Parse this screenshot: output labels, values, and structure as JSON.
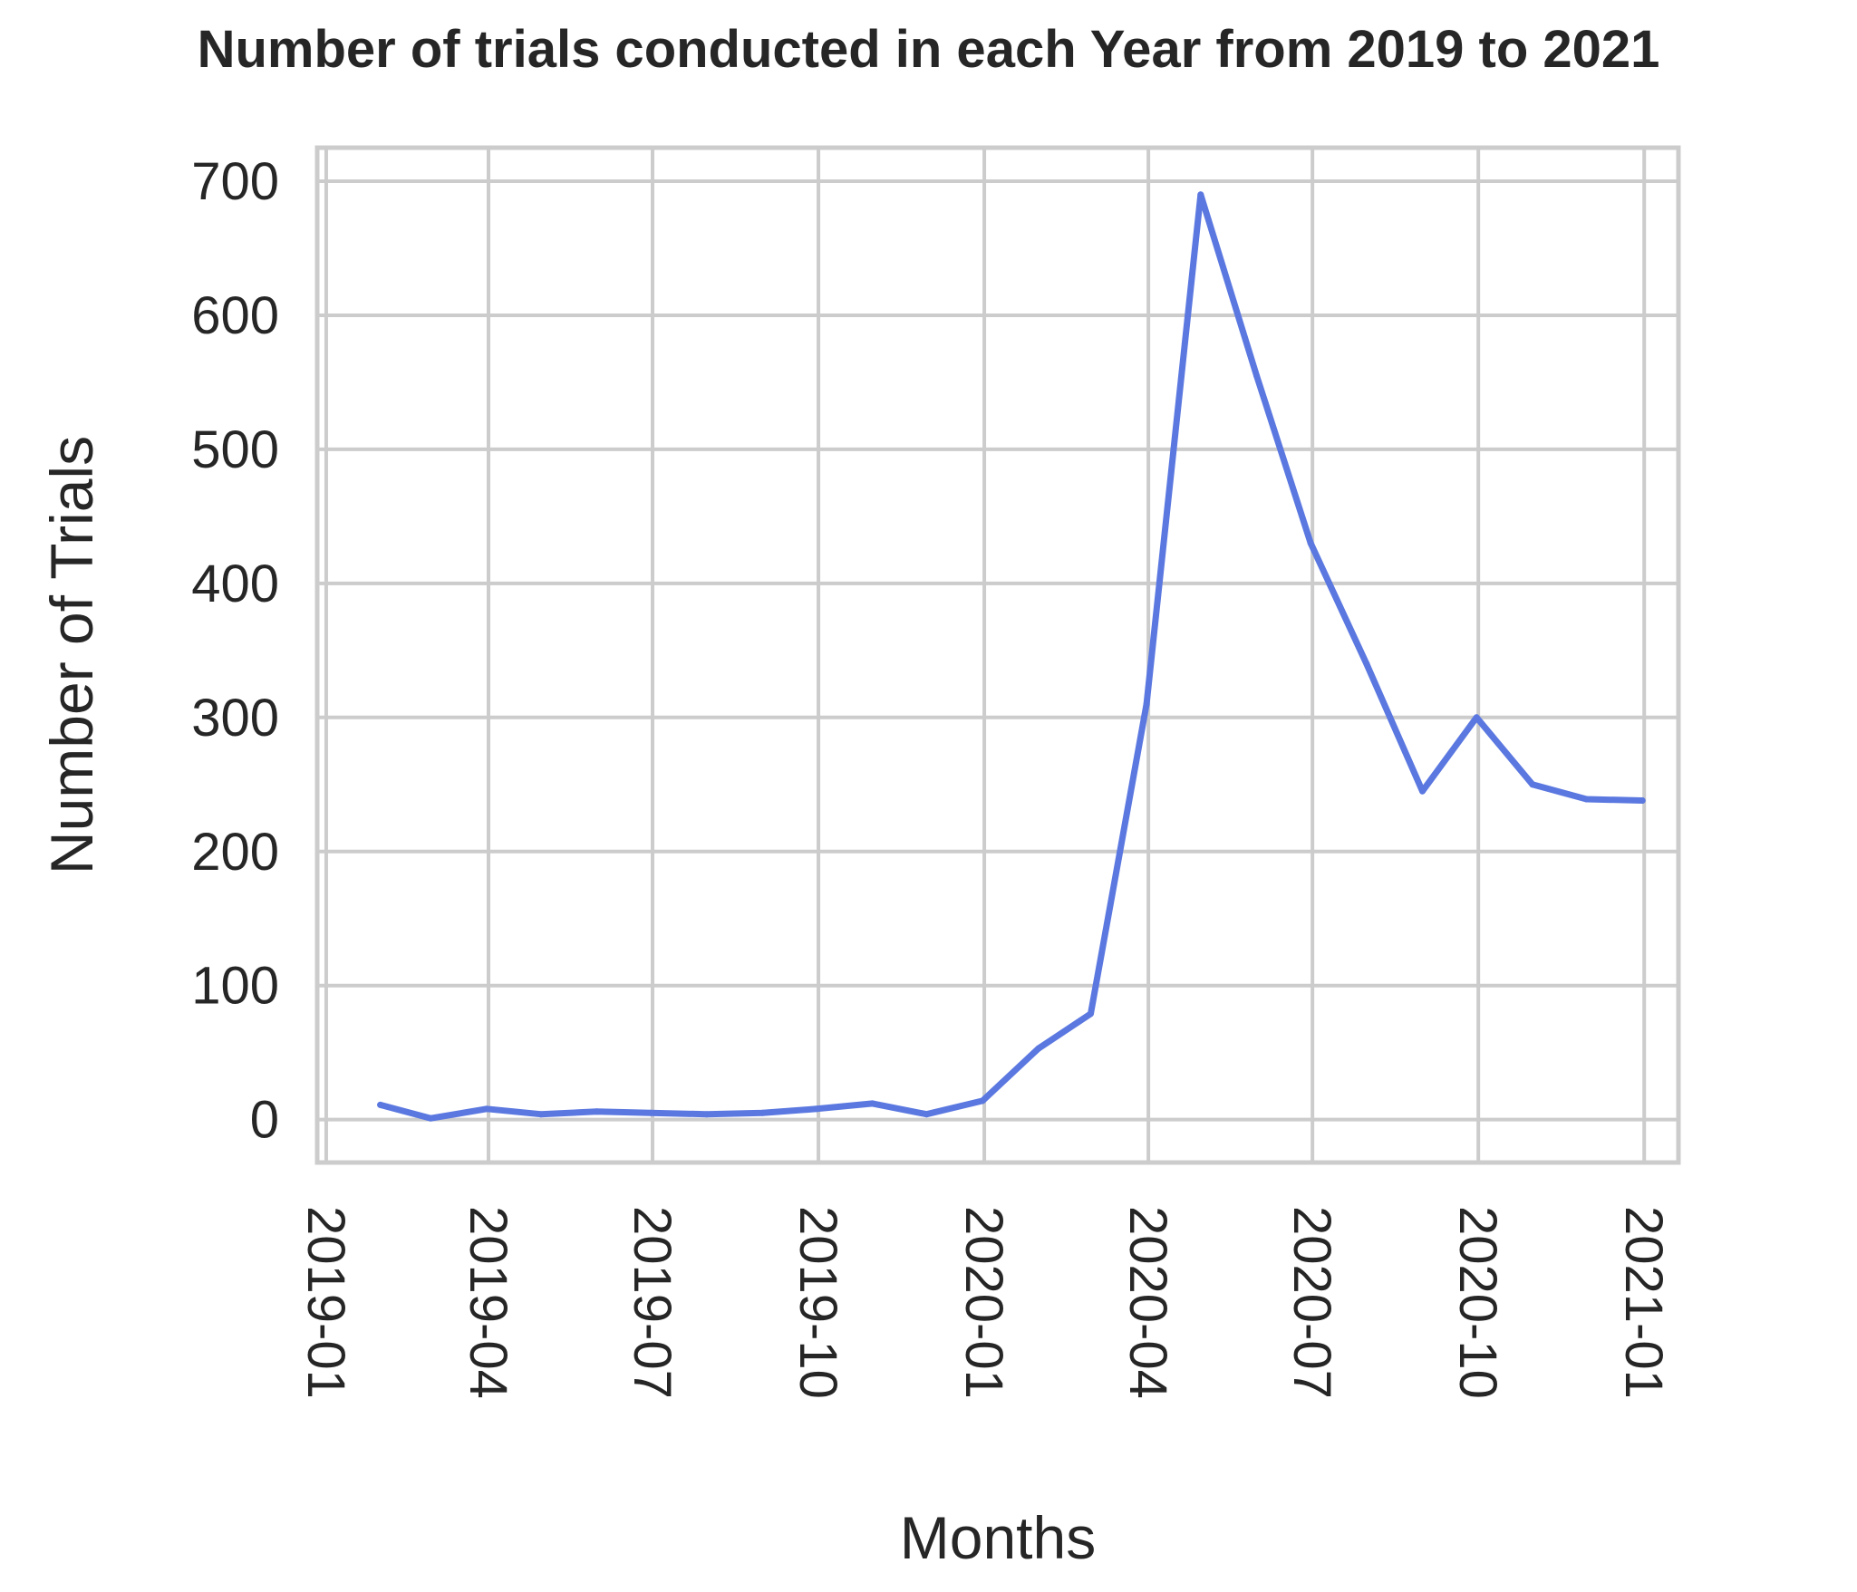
{
  "chart_data": {
    "type": "line",
    "title": "Number of trials conducted in each Year from 2019 to 2021",
    "xlabel": "Months",
    "ylabel": "Number of Trials",
    "ylim": [
      -32,
      725
    ],
    "xlim": [
      "2018-12-27",
      "2021-01-20"
    ],
    "yticks": [
      "0",
      "100",
      "200",
      "300",
      "400",
      "500",
      "600",
      "700"
    ],
    "xticks": [
      {
        "date": "2019-01-01",
        "label": "2019-01"
      },
      {
        "date": "2019-04-01",
        "label": "2019-04"
      },
      {
        "date": "2019-07-01",
        "label": "2019-07"
      },
      {
        "date": "2019-10-01",
        "label": "2019-10"
      },
      {
        "date": "2020-01-01",
        "label": "2020-01"
      },
      {
        "date": "2020-04-01",
        "label": "2020-04"
      },
      {
        "date": "2020-07-01",
        "label": "2020-07"
      },
      {
        "date": "2020-10-01",
        "label": "2020-10"
      },
      {
        "date": "2021-01-01",
        "label": "2021-01"
      }
    ],
    "grid": true,
    "line_color": "#5b78e0",
    "series": [
      {
        "x": [
          "2019-01-31",
          "2019-02-28",
          "2019-03-31",
          "2019-04-30",
          "2019-05-31",
          "2019-06-30",
          "2019-07-31",
          "2019-08-31",
          "2019-09-30",
          "2019-10-31",
          "2019-11-30",
          "2019-12-31",
          "2020-01-31",
          "2020-02-29",
          "2020-03-31",
          "2020-04-30",
          "2020-05-31",
          "2020-06-30",
          "2020-07-31",
          "2020-08-31",
          "2020-09-30",
          "2020-10-31",
          "2020-11-30",
          "2020-12-31"
        ],
        "values": [
          11,
          1,
          8,
          4,
          6,
          5,
          4,
          5,
          8,
          12,
          4,
          14,
          53,
          79,
          310,
          690,
          555,
          430,
          340,
          245,
          300,
          250,
          239,
          238
        ]
      }
    ]
  }
}
